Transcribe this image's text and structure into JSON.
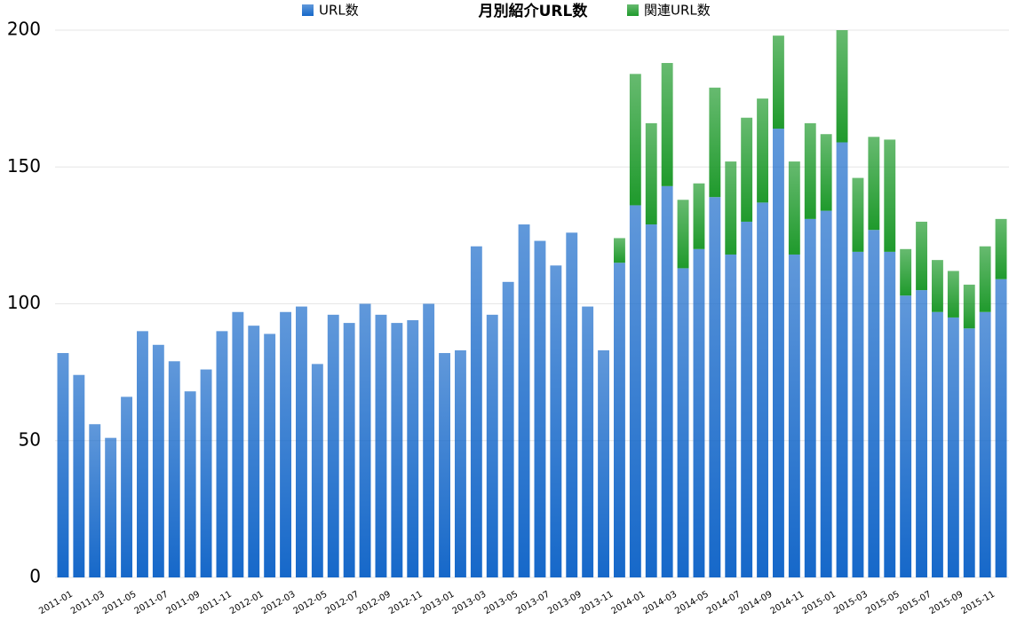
{
  "chart_data": {
    "type": "stacked_bar",
    "title": "月別紹介URL数",
    "legend": "top",
    "grid": true,
    "categories": [
      "2011-01",
      null,
      "2011-03",
      null,
      "2011-05",
      null,
      "2011-07",
      null,
      "2011-09",
      null,
      "2011-11",
      null,
      "2012-01",
      null,
      "2012-03",
      null,
      "2012-05",
      null,
      "2012-07",
      null,
      "2012-09",
      null,
      "2012-11",
      null,
      "2013-01",
      null,
      "2013-03",
      null,
      "2013-05",
      null,
      "2013-07",
      null,
      "2013-09",
      null,
      "2013-11",
      null,
      "2014-01",
      null,
      "2014-03",
      null,
      "2014-05",
      null,
      "2014-07",
      null,
      "2014-09",
      null,
      "2014-11",
      null,
      "2015-01",
      null,
      "2015-03",
      null,
      "2015-05",
      null,
      "2015-07",
      null,
      "2015-09",
      null,
      "2015-11",
      null
    ],
    "series": [
      {
        "name": "URL数",
        "color": "#1668c9",
        "values": [
          82,
          74,
          56,
          51,
          66,
          90,
          85,
          79,
          68,
          76,
          90,
          97,
          92,
          89,
          97,
          99,
          78,
          96,
          93,
          100,
          96,
          93,
          94,
          100,
          82,
          83,
          121,
          96,
          108,
          129,
          123,
          114,
          126,
          99,
          83,
          115,
          136,
          129,
          143,
          113,
          120,
          139,
          118,
          130,
          137,
          164,
          118,
          131,
          134,
          159,
          119,
          127,
          119,
          103,
          105,
          97,
          95,
          91,
          97,
          109
        ]
      },
      {
        "name": "関連URL数",
        "color": "#1f9a2c",
        "values": [
          0,
          0,
          0,
          0,
          0,
          0,
          0,
          0,
          0,
          0,
          0,
          0,
          0,
          0,
          0,
          0,
          0,
          0,
          0,
          0,
          0,
          0,
          0,
          0,
          0,
          0,
          0,
          0,
          0,
          0,
          0,
          0,
          0,
          0,
          0,
          9,
          48,
          37,
          45,
          25,
          24,
          40,
          34,
          38,
          38,
          34,
          34,
          35,
          28,
          41,
          27,
          34,
          41,
          17,
          25,
          19,
          17,
          16,
          24,
          22
        ]
      }
    ],
    "ylim": [
      0,
      200
    ],
    "yticks": [
      0,
      50,
      100,
      150,
      200
    ]
  }
}
